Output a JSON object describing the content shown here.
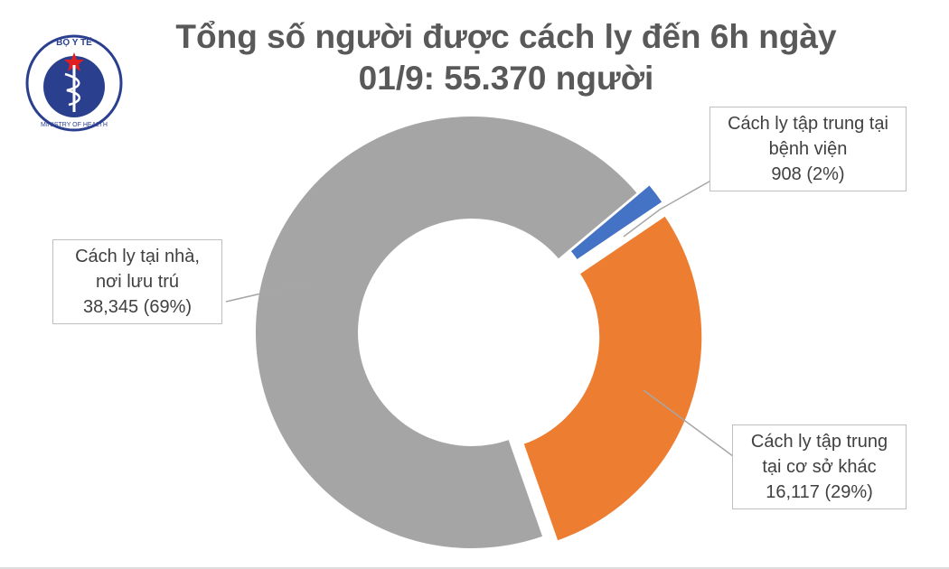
{
  "logo": {
    "top": "BỘ Y TẾ",
    "bottom": "MINISTRY OF HEALTH"
  },
  "chart_data": {
    "type": "donut",
    "title": "Tổng số người được cách ly đến 6h ngày 01/9: 55.370 người",
    "categories": [
      "Cách ly tập trung tại bệnh viện",
      "Cách ly tập trung tại cơ sở khác",
      "Cách ly tại nhà, nơi lưu trú"
    ],
    "values": [
      908,
      16117,
      38345
    ],
    "value_labels": [
      "908 (2%)",
      "16,117 (29%)",
      "38,345 (69%)"
    ],
    "colors": [
      "#4472c4",
      "#ed7d31",
      "#a5a5a5"
    ]
  }
}
